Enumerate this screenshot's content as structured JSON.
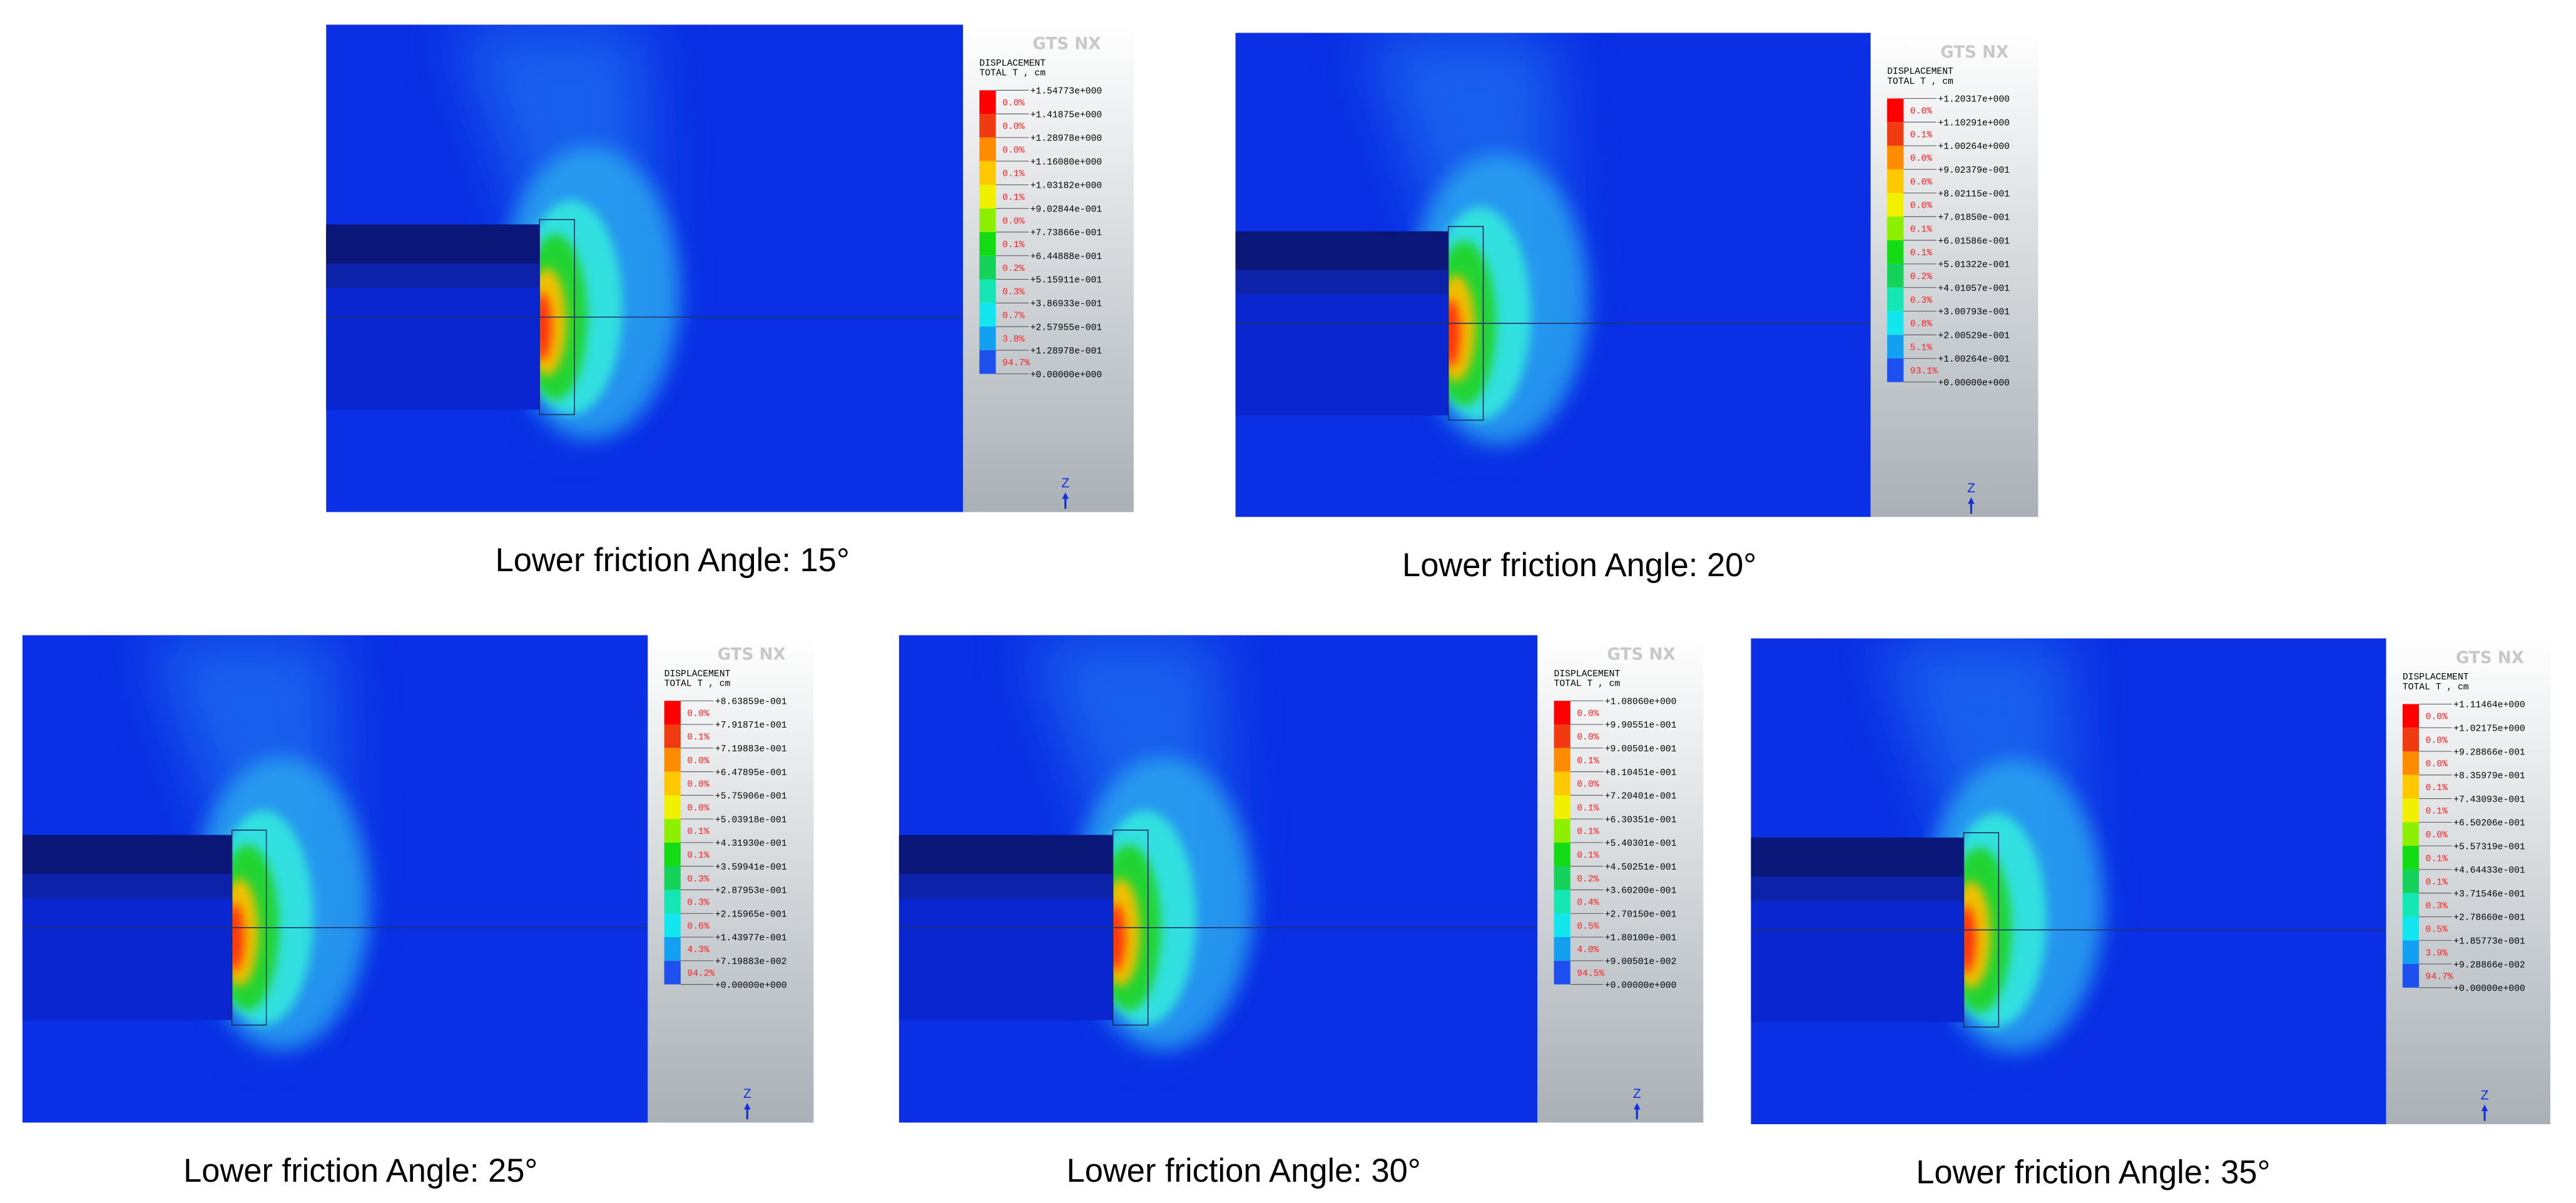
{
  "logo": "GTS NX",
  "legend_title": [
    "DISPLACEMENT",
    "TOTAL T , cm"
  ],
  "axis_label": "Z",
  "legend_colors": [
    "#ff0000",
    "#f03a10",
    "#ff8c00",
    "#ffc800",
    "#f0f000",
    "#8cf000",
    "#14dc14",
    "#14d25a",
    "#14e6b4",
    "#14e6f0",
    "#14a0f0",
    "#1e50f0"
  ],
  "panels": [
    {
      "caption": "Lower friction Angle: 15°",
      "legend_values": [
        "+1.54773e+000",
        "+1.41875e+000",
        "+1.28978e+000",
        "+1.16080e+000",
        "+1.03182e+000",
        "+9.02844e-001",
        "+7.73866e-001",
        "+6.44888e-001",
        "+5.15911e-001",
        "+3.86933e-001",
        "+2.57955e-001",
        "+1.28978e-001",
        "+0.00000e+000"
      ],
      "legend_percents": [
        "0.0%",
        "0.0%",
        "0.0%",
        "0.1%",
        "0.1%",
        "0.0%",
        "0.1%",
        "0.2%",
        "0.3%",
        "0.7%",
        "3.8%",
        "94.7%"
      ]
    },
    {
      "caption": "Lower friction Angle: 20°",
      "legend_values": [
        "+1.20317e+000",
        "+1.10291e+000",
        "+1.00264e+000",
        "+9.02379e-001",
        "+8.02115e-001",
        "+7.01850e-001",
        "+6.01586e-001",
        "+5.01322e-001",
        "+4.01057e-001",
        "+3.00793e-001",
        "+2.00529e-001",
        "+1.00264e-001",
        "+0.00000e+000"
      ],
      "legend_percents": [
        "0.0%",
        "0.1%",
        "0.0%",
        "0.0%",
        "0.0%",
        "0.1%",
        "0.1%",
        "0.2%",
        "0.3%",
        "0.8%",
        "5.1%",
        "93.1%"
      ]
    },
    {
      "caption": "Lower friction Angle: 25°",
      "legend_values": [
        "+8.63859e-001",
        "+7.91871e-001",
        "+7.19883e-001",
        "+6.47895e-001",
        "+5.75906e-001",
        "+5.03918e-001",
        "+4.31930e-001",
        "+3.59941e-001",
        "+2.87953e-001",
        "+2.15965e-001",
        "+1.43977e-001",
        "+7.19883e-002",
        "+0.00000e+000"
      ],
      "legend_percents": [
        "0.0%",
        "0.1%",
        "0.0%",
        "0.0%",
        "0.0%",
        "0.1%",
        "0.1%",
        "0.3%",
        "0.3%",
        "0.6%",
        "4.3%",
        "94.2%"
      ]
    },
    {
      "caption": "Lower friction Angle: 30°",
      "legend_values": [
        "+1.08060e+000",
        "+9.90551e-001",
        "+9.00501e-001",
        "+8.10451e-001",
        "+7.20401e-001",
        "+6.30351e-001",
        "+5.40301e-001",
        "+4.50251e-001",
        "+3.60200e-001",
        "+2.70150e-001",
        "+1.80100e-001",
        "+9.00501e-002",
        "+0.00000e+000"
      ],
      "legend_percents": [
        "0.0%",
        "0.0%",
        "0.1%",
        "0.0%",
        "0.1%",
        "0.1%",
        "0.1%",
        "0.2%",
        "0.4%",
        "0.5%",
        "4.0%",
        "94.5%"
      ]
    },
    {
      "caption": "Lower friction Angle: 35°",
      "legend_values": [
        "+1.11464e+000",
        "+1.02175e+000",
        "+9.28866e-001",
        "+8.35979e-001",
        "+7.43093e-001",
        "+6.50206e-001",
        "+5.57319e-001",
        "+4.64433e-001",
        "+3.71546e-001",
        "+2.78660e-001",
        "+1.85773e-001",
        "+9.28866e-002",
        "+0.00000e+000"
      ],
      "legend_percents": [
        "0.0%",
        "0.0%",
        "0.0%",
        "0.1%",
        "0.1%",
        "0.0%",
        "0.1%",
        "0.1%",
        "0.3%",
        "0.5%",
        "3.9%",
        "94.7%"
      ]
    }
  ]
}
